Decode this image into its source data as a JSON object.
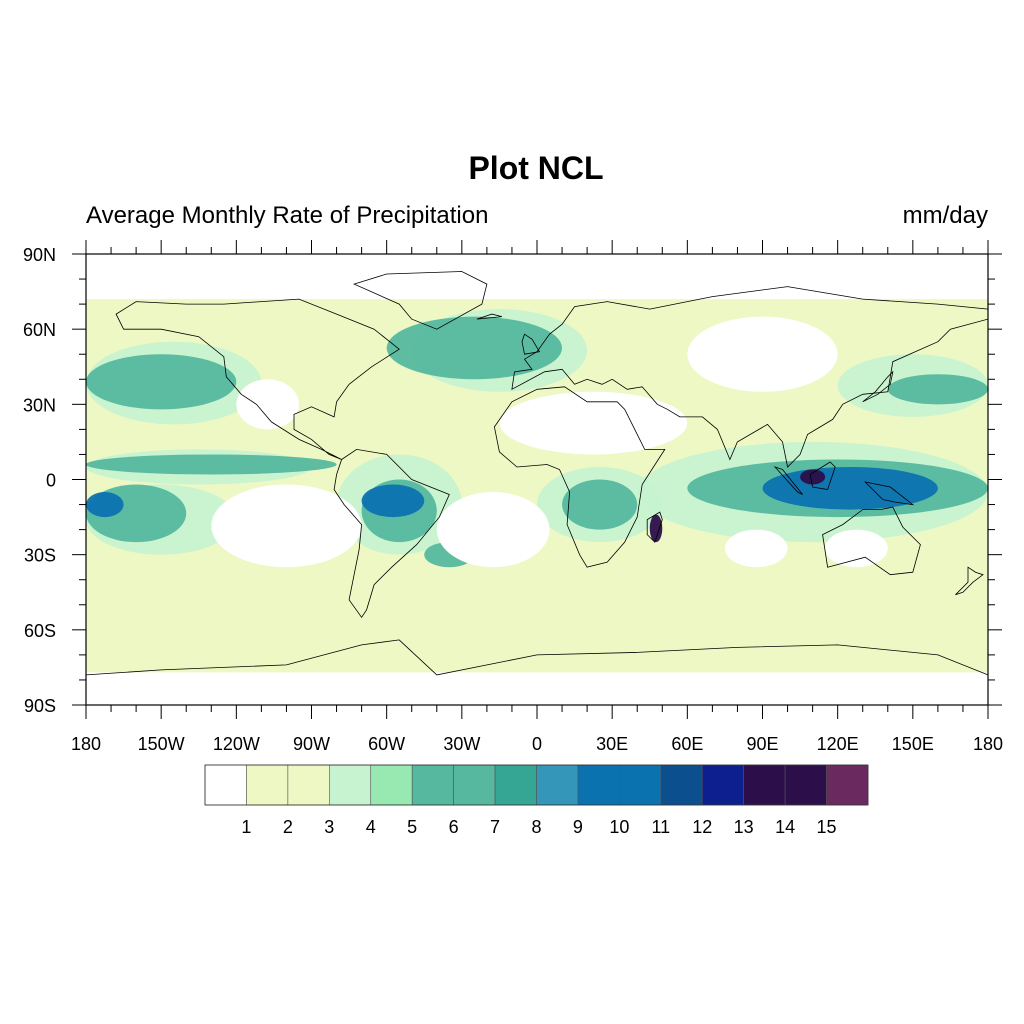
{
  "title": "Plot NCL",
  "left_string": "Average Monthly Rate of Precipitation",
  "right_string": "mm/day",
  "map": {
    "projection": "cylindrical-equidistant",
    "lon_range": [
      -180,
      180
    ],
    "lat_range": [
      -90,
      90
    ],
    "lon_ticks": [
      {
        "value": -180,
        "label": "180"
      },
      {
        "value": -150,
        "label": "150W"
      },
      {
        "value": -120,
        "label": "120W"
      },
      {
        "value": -90,
        "label": "90W"
      },
      {
        "value": -60,
        "label": "60W"
      },
      {
        "value": -30,
        "label": "30W"
      },
      {
        "value": 0,
        "label": "0"
      },
      {
        "value": 30,
        "label": "30E"
      },
      {
        "value": 60,
        "label": "60E"
      },
      {
        "value": 90,
        "label": "90E"
      },
      {
        "value": 120,
        "label": "120E"
      },
      {
        "value": 150,
        "label": "150E"
      },
      {
        "value": 180,
        "label": "180"
      }
    ],
    "lat_ticks": [
      {
        "value": 90,
        "label": "90N"
      },
      {
        "value": 60,
        "label": "60N"
      },
      {
        "value": 30,
        "label": "30N"
      },
      {
        "value": 0,
        "label": "0"
      },
      {
        "value": -30,
        "label": "30S"
      },
      {
        "value": -60,
        "label": "60S"
      },
      {
        "value": -90,
        "label": "90S"
      }
    ],
    "fill_levels": [
      {
        "min": 1,
        "max": 3,
        "color": "#edf8c4",
        "areas": [
          {
            "lon": [
              -180,
              180
            ],
            "lat": [
              -77,
              72
            ],
            "kind": "background-band"
          }
        ]
      },
      {
        "min": 3,
        "max": 5,
        "color": "#c7f3d0",
        "areas": [
          {
            "lon": [
              -180,
              -110
            ],
            "lat": [
              22,
              55
            ]
          },
          {
            "lon": [
              -50,
              20
            ],
            "lat": [
              35,
              68
            ]
          },
          {
            "lon": [
              120,
              180
            ],
            "lat": [
              25,
              50
            ]
          },
          {
            "lon": [
              -180,
              -90
            ],
            "lat": [
              -2,
              12
            ]
          },
          {
            "lon": [
              -180,
              -120
            ],
            "lat": [
              -30,
              -2
            ]
          },
          {
            "lon": [
              40,
              180
            ],
            "lat": [
              -25,
              15
            ]
          },
          {
            "lon": [
              -80,
              -30
            ],
            "lat": [
              -30,
              10
            ]
          },
          {
            "lon": [
              0,
              50
            ],
            "lat": [
              -25,
              5
            ]
          }
        ]
      },
      {
        "min": 6,
        "max": 8,
        "color": "#56b89f",
        "areas": [
          {
            "lon": [
              -180,
              -120
            ],
            "lat": [
              28,
              50
            ]
          },
          {
            "lon": [
              -60,
              10
            ],
            "lat": [
              40,
              65
            ]
          },
          {
            "lon": [
              140,
              180
            ],
            "lat": [
              30,
              42
            ]
          },
          {
            "lon": [
              -180,
              -80
            ],
            "lat": [
              2,
              10
            ]
          },
          {
            "lon": [
              -180,
              -140
            ],
            "lat": [
              -25,
              -2
            ]
          },
          {
            "lon": [
              60,
              180
            ],
            "lat": [
              -15,
              8
            ]
          },
          {
            "lon": [
              -70,
              -40
            ],
            "lat": [
              -25,
              0
            ]
          },
          {
            "lon": [
              -45,
              -25
            ],
            "lat": [
              -35,
              -25
            ]
          },
          {
            "lon": [
              10,
              40
            ],
            "lat": [
              -20,
              0
            ]
          }
        ]
      },
      {
        "min": 9,
        "max": 12,
        "color": "#0b72b0",
        "areas": [
          {
            "lon": [
              -70,
              -45
            ],
            "lat": [
              -15,
              -2
            ]
          },
          {
            "lon": [
              90,
              160
            ],
            "lat": [
              -12,
              5
            ]
          },
          {
            "lon": [
              -180,
              -165
            ],
            "lat": [
              -15,
              -5
            ]
          }
        ]
      },
      {
        "min": 13,
        "max": 15,
        "color": "#2c0f4a",
        "areas": [
          {
            "lon": [
              45,
              50
            ],
            "lat": [
              -25,
              -14
            ]
          },
          {
            "lon": [
              105,
              115
            ],
            "lat": [
              -2,
              4
            ]
          }
        ]
      }
    ],
    "dry_areas": [
      {
        "lon": [
          -130,
          -70
        ],
        "lat": [
          -35,
          -2
        ]
      },
      {
        "lon": [
          -40,
          5
        ],
        "lat": [
          -35,
          -5
        ]
      },
      {
        "lon": [
          -15,
          60
        ],
        "lat": [
          10,
          35
        ]
      },
      {
        "lon": [
          60,
          120
        ],
        "lat": [
          35,
          65
        ]
      },
      {
        "lon": [
          -120,
          -95
        ],
        "lat": [
          20,
          40
        ]
      },
      {
        "lon": [
          75,
          100
        ],
        "lat": [
          -35,
          -20
        ]
      },
      {
        "lon": [
          115,
          140
        ],
        "lat": [
          -35,
          -20
        ]
      },
      {
        "lon": [
          -180,
          180
        ],
        "lat": [
          -90,
          -77
        ]
      },
      {
        "lon": [
          -180,
          180
        ],
        "lat": [
          72,
          90
        ]
      }
    ]
  },
  "colorbar": {
    "colors": [
      "#ffffff",
      "#edf8c4",
      "#edf8c4",
      "#c7f3d0",
      "#97e9b1",
      "#56b89f",
      "#56b89f",
      "#34a693",
      "#3496b8",
      "#0b72b0",
      "#0b72b0",
      "#0c4f8e",
      "#0d1f8e",
      "#2c0f4a",
      "#2c0f4a",
      "#6a2a60"
    ],
    "labels": [
      "1",
      "2",
      "3",
      "4",
      "5",
      "6",
      "7",
      "8",
      "9",
      "10",
      "11",
      "12",
      "13",
      "14",
      "15"
    ]
  }
}
